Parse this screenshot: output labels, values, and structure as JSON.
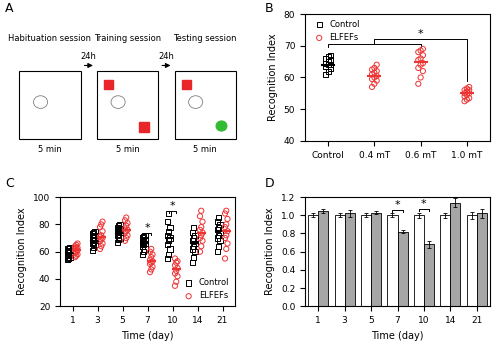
{
  "diagram": {
    "panel": "A",
    "sessions": [
      {
        "label": "Habituation session",
        "duration": "5 min"
      },
      {
        "label": "Training session",
        "duration": "5 min"
      },
      {
        "label": "Testing session",
        "duration": "5 min"
      }
    ],
    "intervals": [
      "24h",
      "24h"
    ]
  },
  "chart_data": [
    {
      "panel": "B",
      "type": "scatter",
      "y_label": "Recognition Index",
      "categories": [
        "Control",
        "0.4 mT",
        "0.6 mT",
        "1.0 mT"
      ],
      "ylim": [
        40,
        80
      ],
      "yticks": [
        40,
        50,
        60,
        70,
        80
      ],
      "legend": "upper left",
      "series": [
        {
          "name": "Control",
          "color": "#000000",
          "marker": "square",
          "values": [
            [
              61,
              62,
              63,
              63.5,
              64,
              64,
              64.5,
              65,
              65.5,
              66,
              66.5,
              67
            ],
            null,
            null,
            null
          ],
          "means": [
            64,
            null,
            null,
            null
          ]
        },
        {
          "name": "ELFEFs",
          "color": "#ee3333",
          "marker": "circle",
          "values": [
            null,
            [
              57,
              58,
              59,
              59.5,
              60,
              60.5,
              61,
              61.5,
              62,
              62.5,
              63,
              64
            ],
            [
              58,
              60,
              62,
              63,
              64,
              64.5,
              65.5,
              66,
              67,
              68,
              68.5,
              69
            ],
            [
              52.5,
              53,
              53.5,
              54,
              54.5,
              55,
              55,
              55.5,
              56,
              56,
              56.5,
              57
            ]
          ],
          "means": [
            null,
            60.5,
            65,
            55
          ]
        }
      ],
      "significance": [
        {
          "from": [
            "Control",
            "0.6 mT"
          ],
          "to": "1.0 mT",
          "label": "*"
        }
      ]
    },
    {
      "panel": "C",
      "type": "scatter",
      "x_label": "Time (day)",
      "y_label": "Recognition Index",
      "categories": [
        "1",
        "3",
        "5",
        "7",
        "10",
        "14",
        "21"
      ],
      "ylim": [
        20,
        100
      ],
      "yticks": [
        20,
        40,
        60,
        80,
        100
      ],
      "legend": "lower right",
      "series": [
        {
          "name": "Control",
          "color": "#000000",
          "marker": "square",
          "values": [
            [
              54,
              55,
              56,
              57,
              58,
              58,
              59,
              60,
              61,
              62,
              62,
              63
            ],
            [
              61,
              63,
              65,
              66,
              67,
              68,
              69,
              70,
              72,
              73,
              74,
              75
            ],
            [
              67,
              69,
              70,
              72,
              73,
              74,
              75,
              76,
              77,
              78,
              79,
              80
            ],
            [
              58,
              60,
              62,
              64,
              65,
              66,
              67,
              68,
              69,
              70,
              71,
              72
            ],
            [
              55,
              58,
              62,
              65,
              68,
              70,
              72,
              75,
              78,
              82,
              88
            ],
            [
              52,
              56,
              60,
              62,
              64,
              66,
              68,
              70,
              72,
              74,
              78
            ],
            [
              60,
              64,
              68,
              70,
              72,
              74,
              76,
              78,
              80,
              82,
              85
            ]
          ],
          "means": [
            59,
            68,
            74,
            66,
            70,
            66,
            75
          ]
        },
        {
          "name": "ELFEFs",
          "color": "#ee3333",
          "marker": "circle",
          "values": [
            [
              56,
              57,
              58,
              59,
              60,
              61,
              62,
              63,
              63,
              64,
              65,
              66
            ],
            [
              62,
              64,
              66,
              68,
              69,
              70,
              71,
              72,
              75,
              78,
              80,
              82
            ],
            [
              68,
              70,
              72,
              74,
              75,
              76,
              77,
              79,
              81,
              83,
              85
            ],
            [
              45,
              47,
              49,
              51,
              52,
              53,
              54,
              56,
              58,
              60,
              62
            ],
            [
              35,
              38,
              42,
              44,
              46,
              48,
              50,
              52,
              53,
              55
            ],
            [
              60,
              64,
              68,
              70,
              72,
              74,
              76,
              78,
              82,
              86,
              90
            ],
            [
              55,
              62,
              66,
              70,
              72,
              75,
              78,
              80,
              84,
              88,
              90
            ]
          ],
          "means": [
            61,
            71,
            76,
            53,
            47,
            74,
            75
          ]
        }
      ],
      "significance": [
        {
          "category": "7",
          "label": "*"
        },
        {
          "category": "10",
          "label": "*"
        }
      ]
    },
    {
      "panel": "D",
      "type": "bar",
      "x_label": "Time (day)",
      "y_label": "Recognition Index",
      "categories": [
        "1",
        "3",
        "5",
        "7",
        "10",
        "14",
        "21"
      ],
      "ylim": [
        0,
        1.2
      ],
      "yticks": [
        {
          "value": 0,
          "label": "0.0"
        },
        0.2,
        0.4,
        0.6,
        0.8,
        {
          "value": 1,
          "label": "1.0"
        },
        1.2
      ],
      "series": [
        {
          "name": "Control",
          "color": "#ffffff",
          "values": [
            1.0,
            1.0,
            1.0,
            1.0,
            1.0,
            1.0,
            1.0
          ],
          "errors": [
            0.02,
            0.02,
            0.02,
            0.02,
            0.03,
            0.03,
            0.04
          ]
        },
        {
          "name": "ELFEFs",
          "color": "#a6a6a6",
          "values": [
            1.05,
            1.02,
            1.03,
            0.82,
            0.68,
            1.14,
            1.02
          ],
          "errors": [
            0.02,
            0.04,
            0.02,
            0.02,
            0.04,
            0.05,
            0.05
          ]
        }
      ],
      "significance": [
        {
          "category": "7",
          "label": "*"
        },
        {
          "category": "10",
          "label": "*"
        }
      ]
    }
  ]
}
